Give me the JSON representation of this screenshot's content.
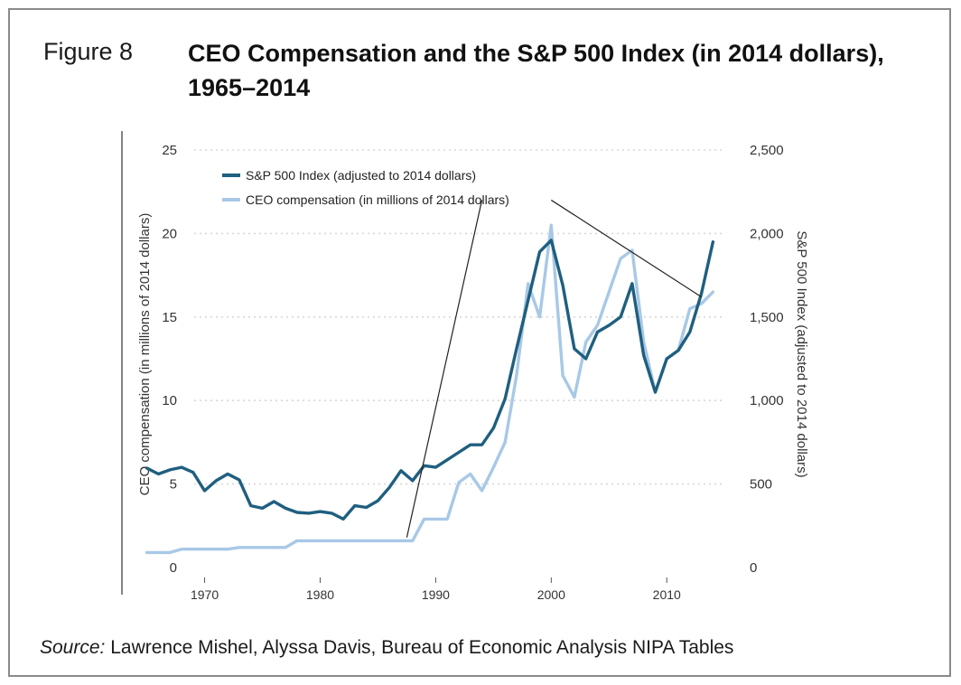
{
  "figure": {
    "number": "Figure 8",
    "title": "CEO Compensation and the S&P 500 Index (in 2014 dollars), 1965–2014",
    "source_label": "Source:",
    "source_text": " Lawrence Mishel, Alyssa Davis, Bureau of Economic Analysis NIPA Tables"
  },
  "colors": {
    "sp500": "#1f5f7f",
    "ceo": "#a8c8e6",
    "grid": "#d8d8d8",
    "axis": "#333333",
    "annotation": "#222222"
  },
  "chart_data": {
    "type": "line",
    "title": "CEO Compensation and the S&P 500 Index (in 2014 dollars), 1965–2014",
    "xlabel": "",
    "ylabel": "CEO compensation (in millions of 2014 dollars)",
    "y2label": "S&P 500 Index (adjusted to 2014 dollars)",
    "xlim": [
      1963,
      2016
    ],
    "ylim": [
      0,
      25
    ],
    "y2lim": [
      0,
      2500
    ],
    "x_ticks": [
      1970,
      1980,
      1990,
      2000,
      2010
    ],
    "y_ticks": [
      "0",
      "5",
      "10",
      "15",
      "20",
      "25"
    ],
    "y_tick_values": [
      0,
      5,
      10,
      15,
      20,
      25
    ],
    "y2_ticks": [
      "0",
      "500",
      "1,000",
      "1,500",
      "2,000",
      "2,500"
    ],
    "y2_tick_values": [
      0,
      500,
      1000,
      1500,
      2000,
      2500
    ],
    "grid": "horizontal dotted",
    "legend_position": "top-left",
    "series": [
      {
        "name": "S&P 500 Index (adjusted to 2014 dollars)",
        "axis": "right",
        "x": [
          1965,
          1966,
          1967,
          1968,
          1969,
          1970,
          1971,
          1972,
          1973,
          1974,
          1975,
          1976,
          1977,
          1978,
          1979,
          1980,
          1981,
          1982,
          1983,
          1984,
          1985,
          1986,
          1987,
          1988,
          1989,
          1990,
          1991,
          1992,
          1993,
          1994,
          1995,
          1996,
          1997,
          1998,
          1999,
          2000,
          2001,
          2002,
          2003,
          2004,
          2005,
          2006,
          2007,
          2008,
          2009,
          2010,
          2011,
          2012,
          2013,
          2014
        ],
        "values": [
          595,
          560,
          585,
          600,
          570,
          460,
          520,
          560,
          525,
          370,
          355,
          395,
          355,
          330,
          325,
          335,
          325,
          290,
          370,
          360,
          400,
          480,
          580,
          520,
          610,
          600,
          645,
          690,
          735,
          735,
          835,
          1010,
          1310,
          1600,
          1890,
          1960,
          1690,
          1310,
          1250,
          1410,
          1450,
          1500,
          1700,
          1270,
          1050,
          1250,
          1300,
          1410,
          1640,
          1950
        ]
      },
      {
        "name": "CEO compensation (in millions of 2014 dollars)",
        "axis": "left",
        "x": [
          1965,
          1966,
          1967,
          1968,
          1969,
          1970,
          1971,
          1972,
          1973,
          1974,
          1975,
          1976,
          1977,
          1978,
          1979,
          1980,
          1981,
          1982,
          1983,
          1984,
          1985,
          1986,
          1987,
          1988,
          1989,
          1990,
          1991,
          1992,
          1993,
          1994,
          1995,
          1996,
          1997,
          1998,
          1999,
          2000,
          2001,
          2002,
          2003,
          2004,
          2005,
          2006,
          2007,
          2008,
          2009,
          2010,
          2011,
          2012,
          2013,
          2014
        ],
        "values": [
          0.9,
          0.9,
          0.9,
          1.1,
          1.1,
          1.1,
          1.1,
          1.1,
          1.2,
          1.2,
          1.2,
          1.2,
          1.2,
          1.6,
          1.6,
          1.6,
          1.6,
          1.6,
          1.6,
          1.6,
          1.6,
          1.6,
          1.6,
          1.6,
          2.9,
          2.9,
          2.9,
          5.1,
          5.6,
          4.6,
          6.0,
          7.5,
          11.5,
          17.0,
          15.0,
          20.5,
          11.5,
          10.2,
          13.5,
          14.5,
          16.5,
          18.5,
          19.0,
          13.5,
          10.5,
          12.5,
          13.0,
          15.5,
          15.8,
          16.5
        ]
      }
    ],
    "annotations": [
      {
        "type": "leader-line",
        "from": [
          1994,
          22
        ],
        "to": [
          1987.5,
          1.8
        ]
      },
      {
        "type": "leader-line",
        "from": [
          2000,
          22
        ],
        "to": [
          2013,
          16.2
        ]
      }
    ]
  }
}
